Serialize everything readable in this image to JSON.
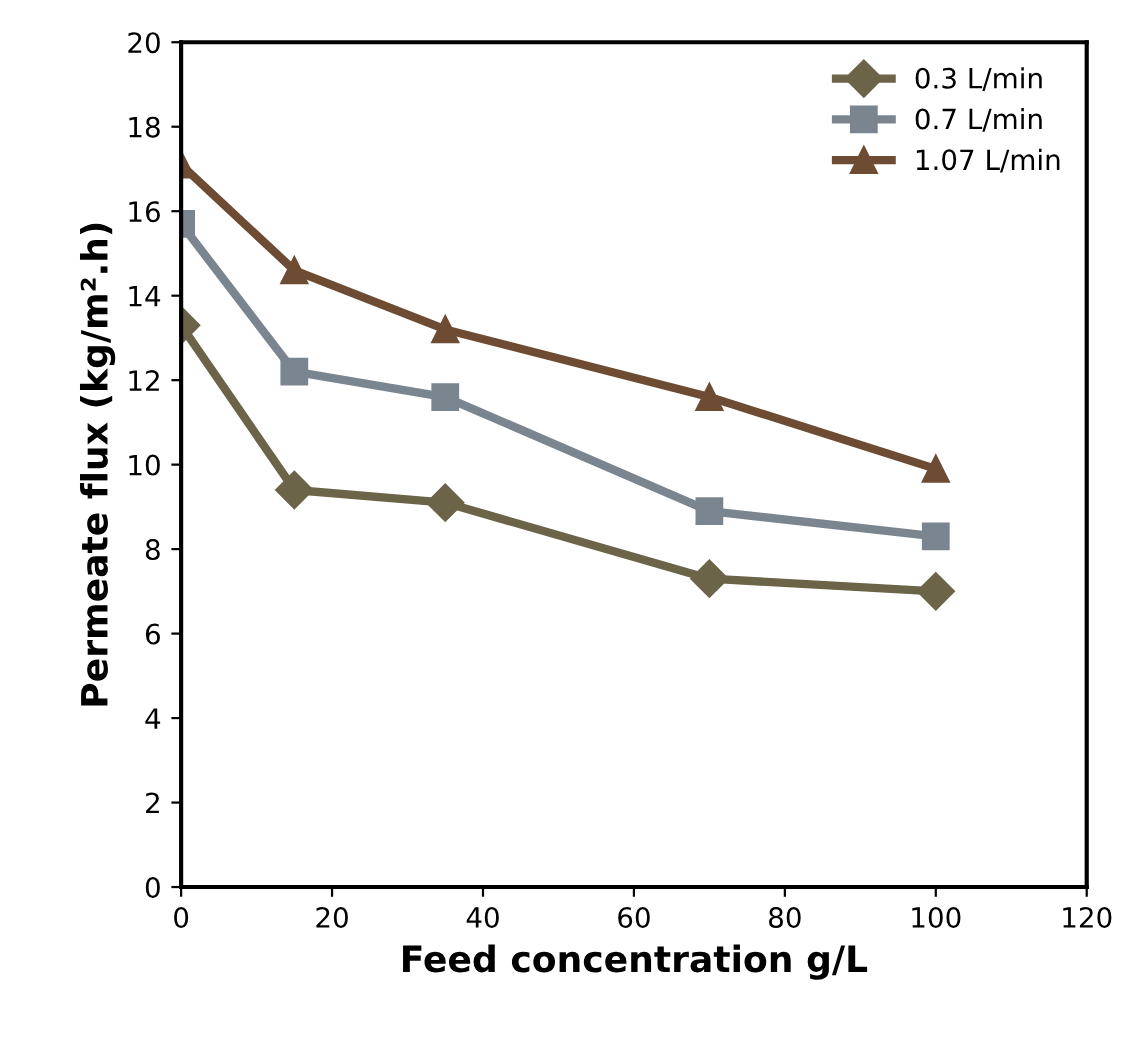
{
  "chart_data": {
    "type": "line",
    "xlabel": "Feed concentration g/L",
    "ylabel": "Permeate flux (kg/m².h)",
    "x": [
      0,
      15,
      35,
      70,
      100
    ],
    "series": [
      {
        "name": "0.3 L/min",
        "color": "#6b6449",
        "marker": "diamond",
        "values": [
          13.3,
          9.4,
          9.1,
          7.3,
          7.0
        ]
      },
      {
        "name": "0.7 L/min",
        "color": "#7a8590",
        "marker": "square",
        "values": [
          15.7,
          12.2,
          11.6,
          8.9,
          8.3
        ]
      },
      {
        "name": "1.07 L/min",
        "color": "#6e4c33",
        "marker": "triangle",
        "values": [
          17.1,
          14.6,
          13.2,
          11.6,
          9.9
        ]
      }
    ],
    "xlim": [
      0,
      120
    ],
    "xticks": [
      0,
      20,
      40,
      60,
      80,
      100,
      120
    ],
    "ylim": [
      0,
      20
    ],
    "yticks": [
      0,
      2,
      4,
      6,
      8,
      10,
      12,
      14,
      16,
      18,
      20
    ],
    "grid": false,
    "legend": "top right"
  }
}
